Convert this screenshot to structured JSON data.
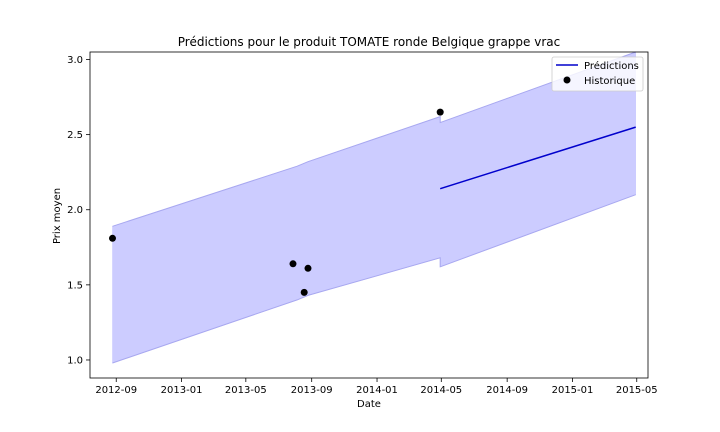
{
  "chart_data": {
    "type": "line",
    "title": "Prédictions pour le produit TOMATE ronde Belgique grappe vrac",
    "xlabel": "Date",
    "ylabel": "Prix moyen",
    "xlim": [
      "2012-07-14",
      "2015-05-22"
    ],
    "ylim": [
      0.88,
      3.05
    ],
    "x_ticks": [
      "2012-09-01",
      "2013-01-01",
      "2013-05-01",
      "2013-09-01",
      "2014-01-01",
      "2014-05-01",
      "2014-09-01",
      "2015-01-01",
      "2015-05-01"
    ],
    "x_tick_labels": [
      "2012-09",
      "2013-01",
      "2013-05",
      "2013-09",
      "2014-01",
      "2014-05",
      "2014-09",
      "2015-01",
      "2015-05"
    ],
    "y_ticks": [
      1.0,
      1.5,
      2.0,
      2.5,
      3.0
    ],
    "y_tick_labels": [
      "1.0",
      "1.5",
      "2.0",
      "2.5",
      "3.0"
    ],
    "legend_position": "top-right",
    "colors": {
      "prediction_line": "#0000cc",
      "band_fill": "#ccccff",
      "band_edge": "#a8a8f0",
      "history_points": "#000000"
    },
    "series": [
      {
        "name": "Prédictions",
        "kind": "line",
        "x": [
          "2014-04-29",
          "2015-04-29"
        ],
        "y": [
          2.14,
          2.55
        ]
      },
      {
        "name": "Historique",
        "kind": "scatter",
        "x": [
          "2012-08-25",
          "2013-07-28",
          "2013-08-18",
          "2013-08-25",
          "2014-04-29"
        ],
        "y": [
          1.81,
          1.64,
          1.45,
          1.61,
          2.65
        ]
      }
    ],
    "uncertainty_band": {
      "x": [
        "2012-08-25",
        "2013-08-05",
        "2013-08-25",
        "2014-04-29",
        "2014-04-29",
        "2015-04-29"
      ],
      "upper": [
        1.89,
        2.29,
        2.32,
        2.62,
        2.58,
        3.05
      ],
      "lower": [
        0.98,
        1.4,
        1.43,
        1.68,
        1.62,
        2.1
      ]
    }
  }
}
